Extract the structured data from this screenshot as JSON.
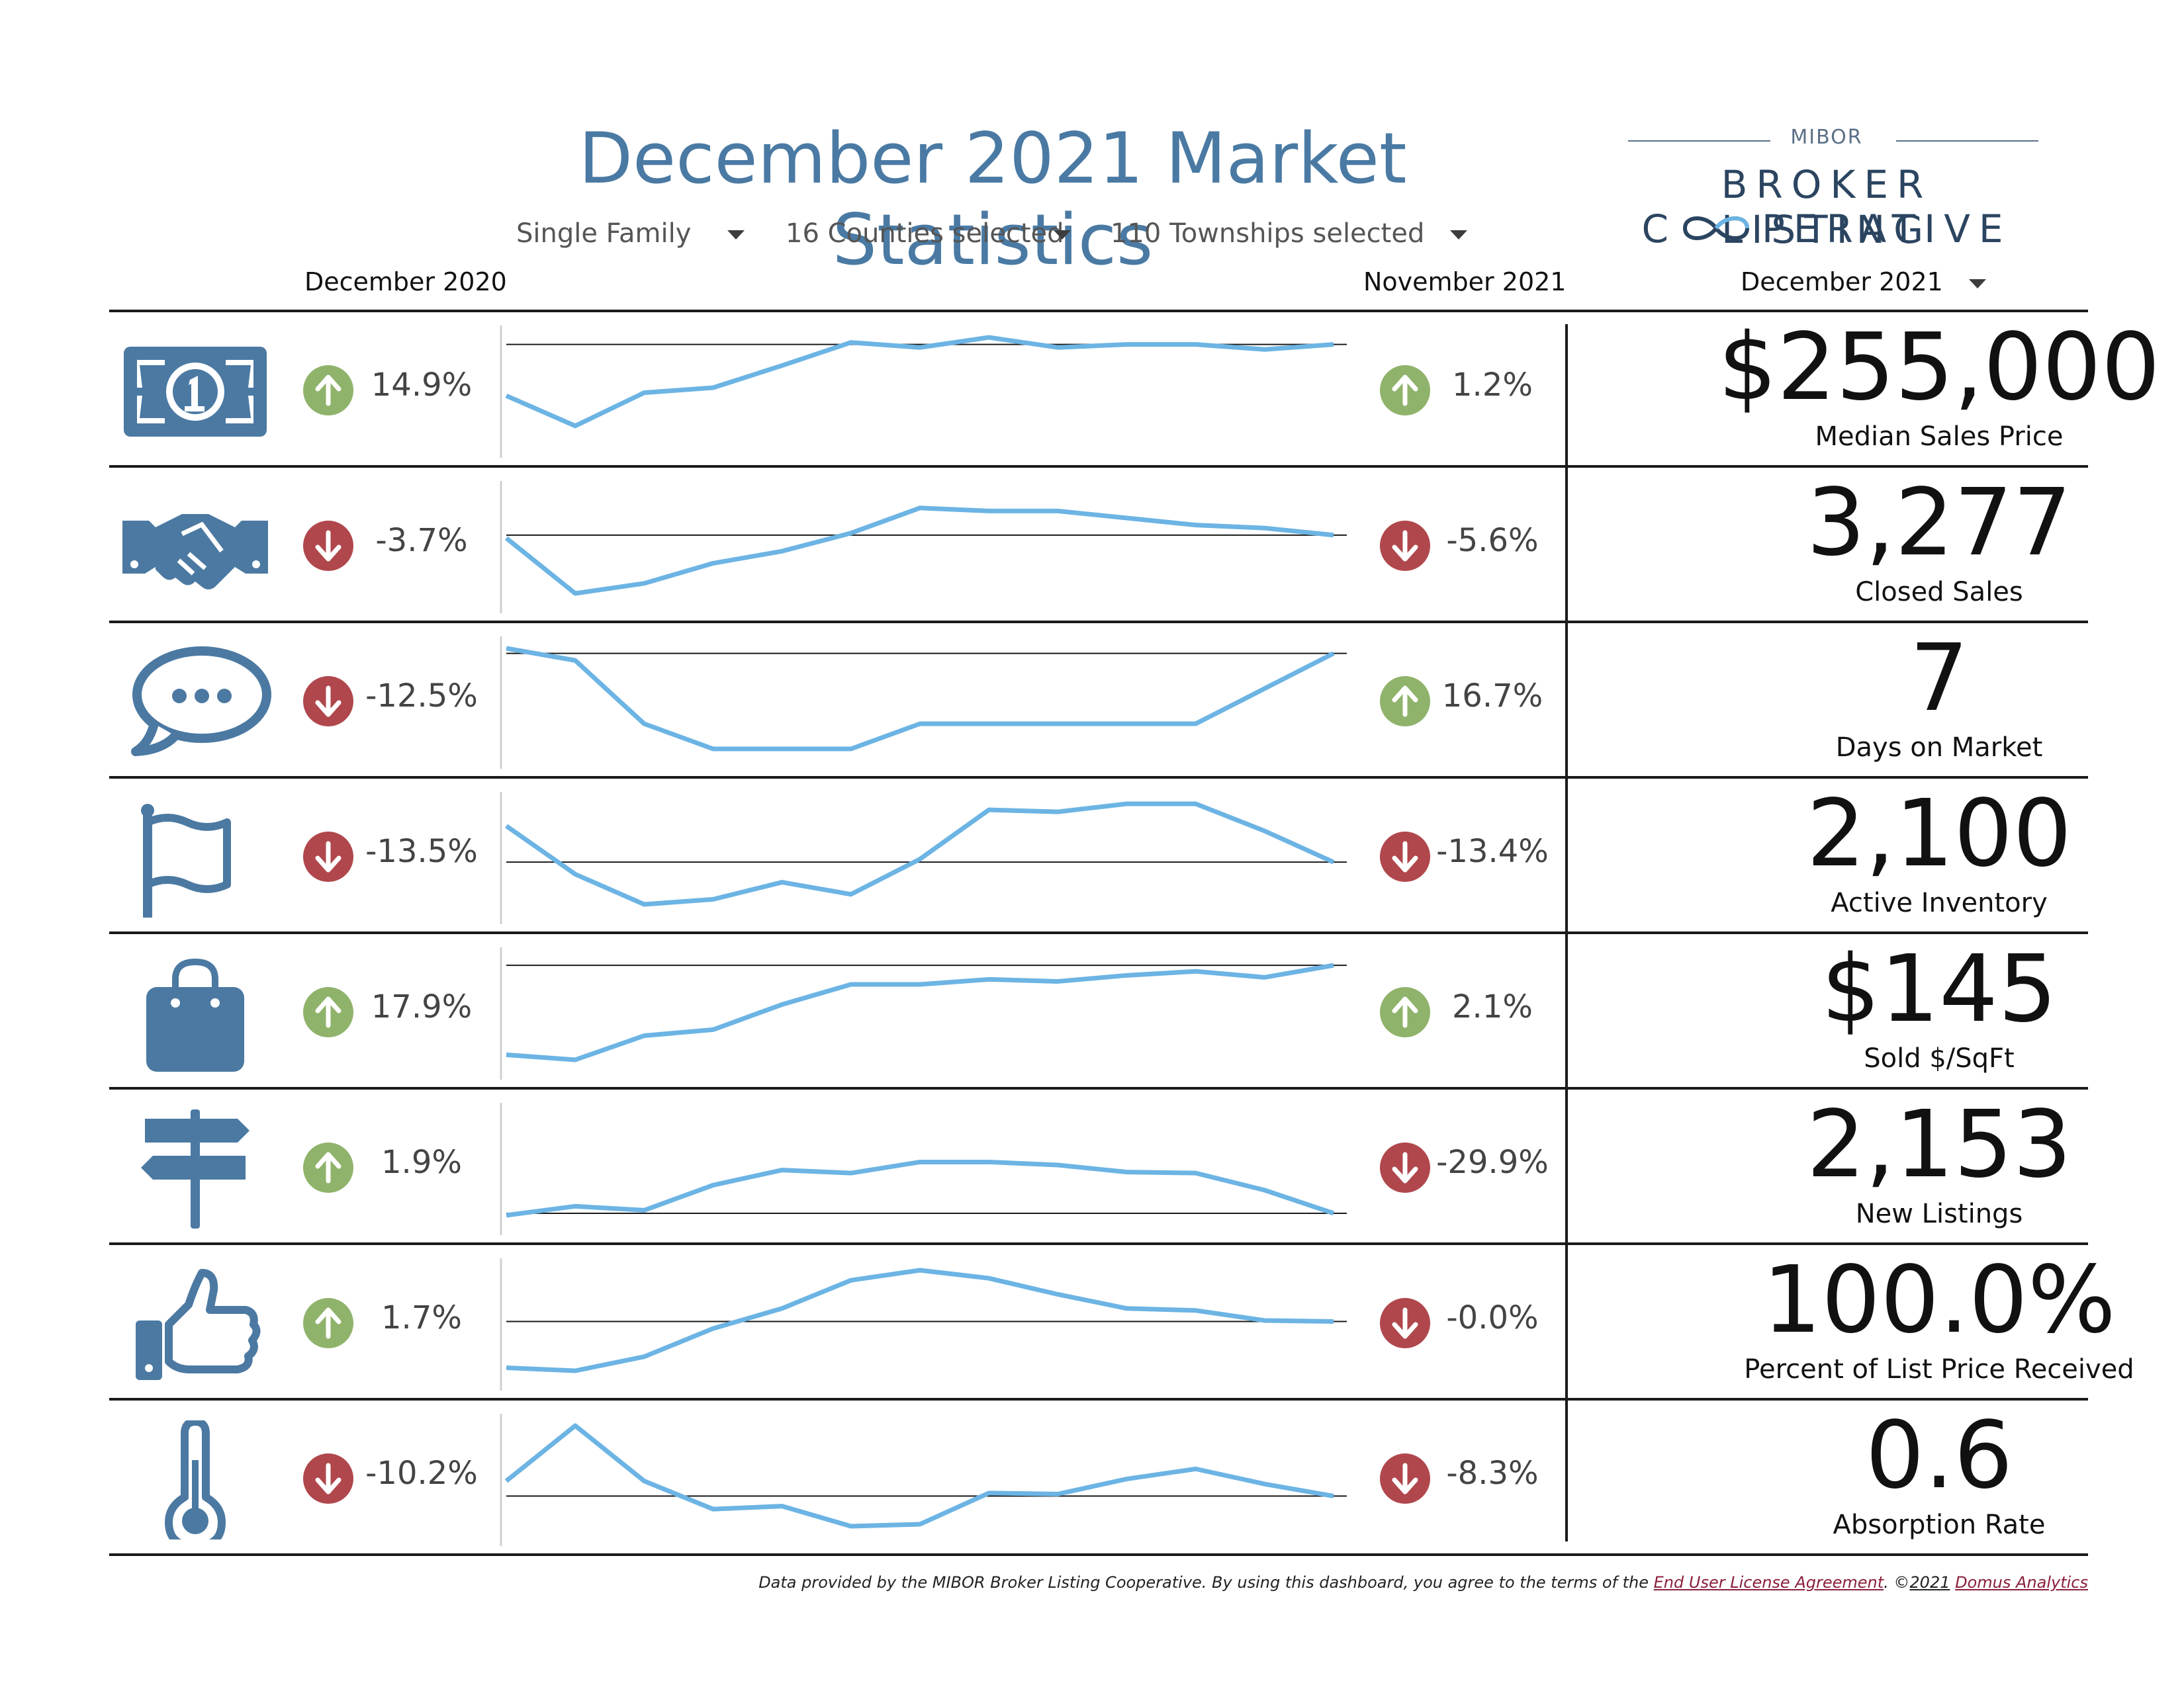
{
  "header": {
    "title": "December 2021 Market Statistics",
    "filters": [
      {
        "label": "Single Family"
      },
      {
        "label": "16 Counties selected"
      },
      {
        "label": "110 Townships selected"
      }
    ],
    "columns": {
      "prior_year": "December 2020",
      "prior_month": "November 2021",
      "current": "December 2021"
    }
  },
  "logo": {
    "top": "MIBOR",
    "line1": "BROKER LISTING",
    "line2_left": "C",
    "line2_right": "PERATIVE"
  },
  "colors": {
    "accent": "#4a7aa3",
    "icon": "#4b79a2",
    "sparkline": "#6cb4e4",
    "up": "#8fb36b",
    "down": "#b0474c"
  },
  "metrics": [
    {
      "icon": "dollar-bill-icon",
      "yoy": {
        "value": "14.9%",
        "dir": "up"
      },
      "mom": {
        "value": "1.2%",
        "dir": "up"
      },
      "value": "$255,000",
      "label": "Median Sales Price",
      "trend": [
        0.42,
        0.12,
        0.45,
        0.5,
        0.72,
        0.95,
        0.9,
        1.0,
        0.9,
        0.93,
        0.93,
        0.88,
        0.93
      ]
    },
    {
      "icon": "handshake-icon",
      "yoy": {
        "value": "-3.7%",
        "dir": "down"
      },
      "mom": {
        "value": "-5.6%",
        "dir": "down"
      },
      "value": "3,277",
      "label": "Closed Sales",
      "trend": [
        0.55,
        0.0,
        0.1,
        0.3,
        0.42,
        0.6,
        0.85,
        0.82,
        0.82,
        0.75,
        0.68,
        0.65,
        0.58
      ]
    },
    {
      "icon": "speech-bubble-icon",
      "yoy": {
        "value": "-12.5%",
        "dir": "down"
      },
      "mom": {
        "value": "16.7%",
        "dir": "up"
      },
      "value": "7",
      "label": "Days on Market",
      "trend": [
        1.0,
        0.88,
        0.25,
        0.0,
        0.0,
        0.0,
        0.25,
        0.25,
        0.25,
        0.25,
        0.25,
        0.6,
        0.95
      ]
    },
    {
      "icon": "flag-icon",
      "yoy": {
        "value": "-13.5%",
        "dir": "down"
      },
      "mom": {
        "value": "-13.4%",
        "dir": "down"
      },
      "value": "2,100",
      "label": "Active Inventory",
      "trend": [
        0.78,
        0.3,
        0.0,
        0.05,
        0.22,
        0.1,
        0.45,
        0.94,
        0.92,
        1.0,
        1.0,
        0.73,
        0.42
      ]
    },
    {
      "icon": "shopping-bag-icon",
      "yoy": {
        "value": "17.9%",
        "dir": "up"
      },
      "mom": {
        "value": "2.1%",
        "dir": "up"
      },
      "value": "$145",
      "label": "Sold $/SqFt",
      "trend": [
        0.05,
        0.0,
        0.24,
        0.3,
        0.55,
        0.75,
        0.75,
        0.8,
        0.78,
        0.84,
        0.88,
        0.82,
        0.94
      ]
    },
    {
      "icon": "signpost-icon",
      "yoy": {
        "value": "1.9%",
        "dir": "up"
      },
      "mom": {
        "value": "-29.9%",
        "dir": "down"
      },
      "value": "2,153",
      "label": "New Listings",
      "trend": [
        0.0,
        0.09,
        0.05,
        0.3,
        0.45,
        0.42,
        0.53,
        0.53,
        0.5,
        0.43,
        0.42,
        0.25,
        0.02
      ]
    },
    {
      "icon": "thumbs-up-icon",
      "yoy": {
        "value": "1.7%",
        "dir": "up"
      },
      "mom": {
        "value": "-0.0%",
        "dir": "down"
      },
      "value": "100.0%",
      "label": "Percent of List Price Received",
      "trend": [
        0.03,
        0.0,
        0.14,
        0.42,
        0.62,
        0.9,
        1.0,
        0.92,
        0.76,
        0.62,
        0.6,
        0.5,
        0.49
      ]
    },
    {
      "icon": "thermometer-icon",
      "yoy": {
        "value": "-10.2%",
        "dir": "down"
      },
      "mom": {
        "value": "-8.3%",
        "dir": "down"
      },
      "value": "0.6",
      "label": "Absorption Rate",
      "trend": [
        0.45,
        1.0,
        0.45,
        0.17,
        0.2,
        0.0,
        0.02,
        0.33,
        0.32,
        0.47,
        0.57,
        0.42,
        0.3
      ]
    }
  ],
  "footer": {
    "text": "Data provided by the MIBOR Broker Listing Cooperative.  By using this dashboard, you agree to the terms of the ",
    "link": "End User License Agreement",
    "mid": ".  ©",
    "year": "2021",
    "company": "Domus Analytics"
  }
}
